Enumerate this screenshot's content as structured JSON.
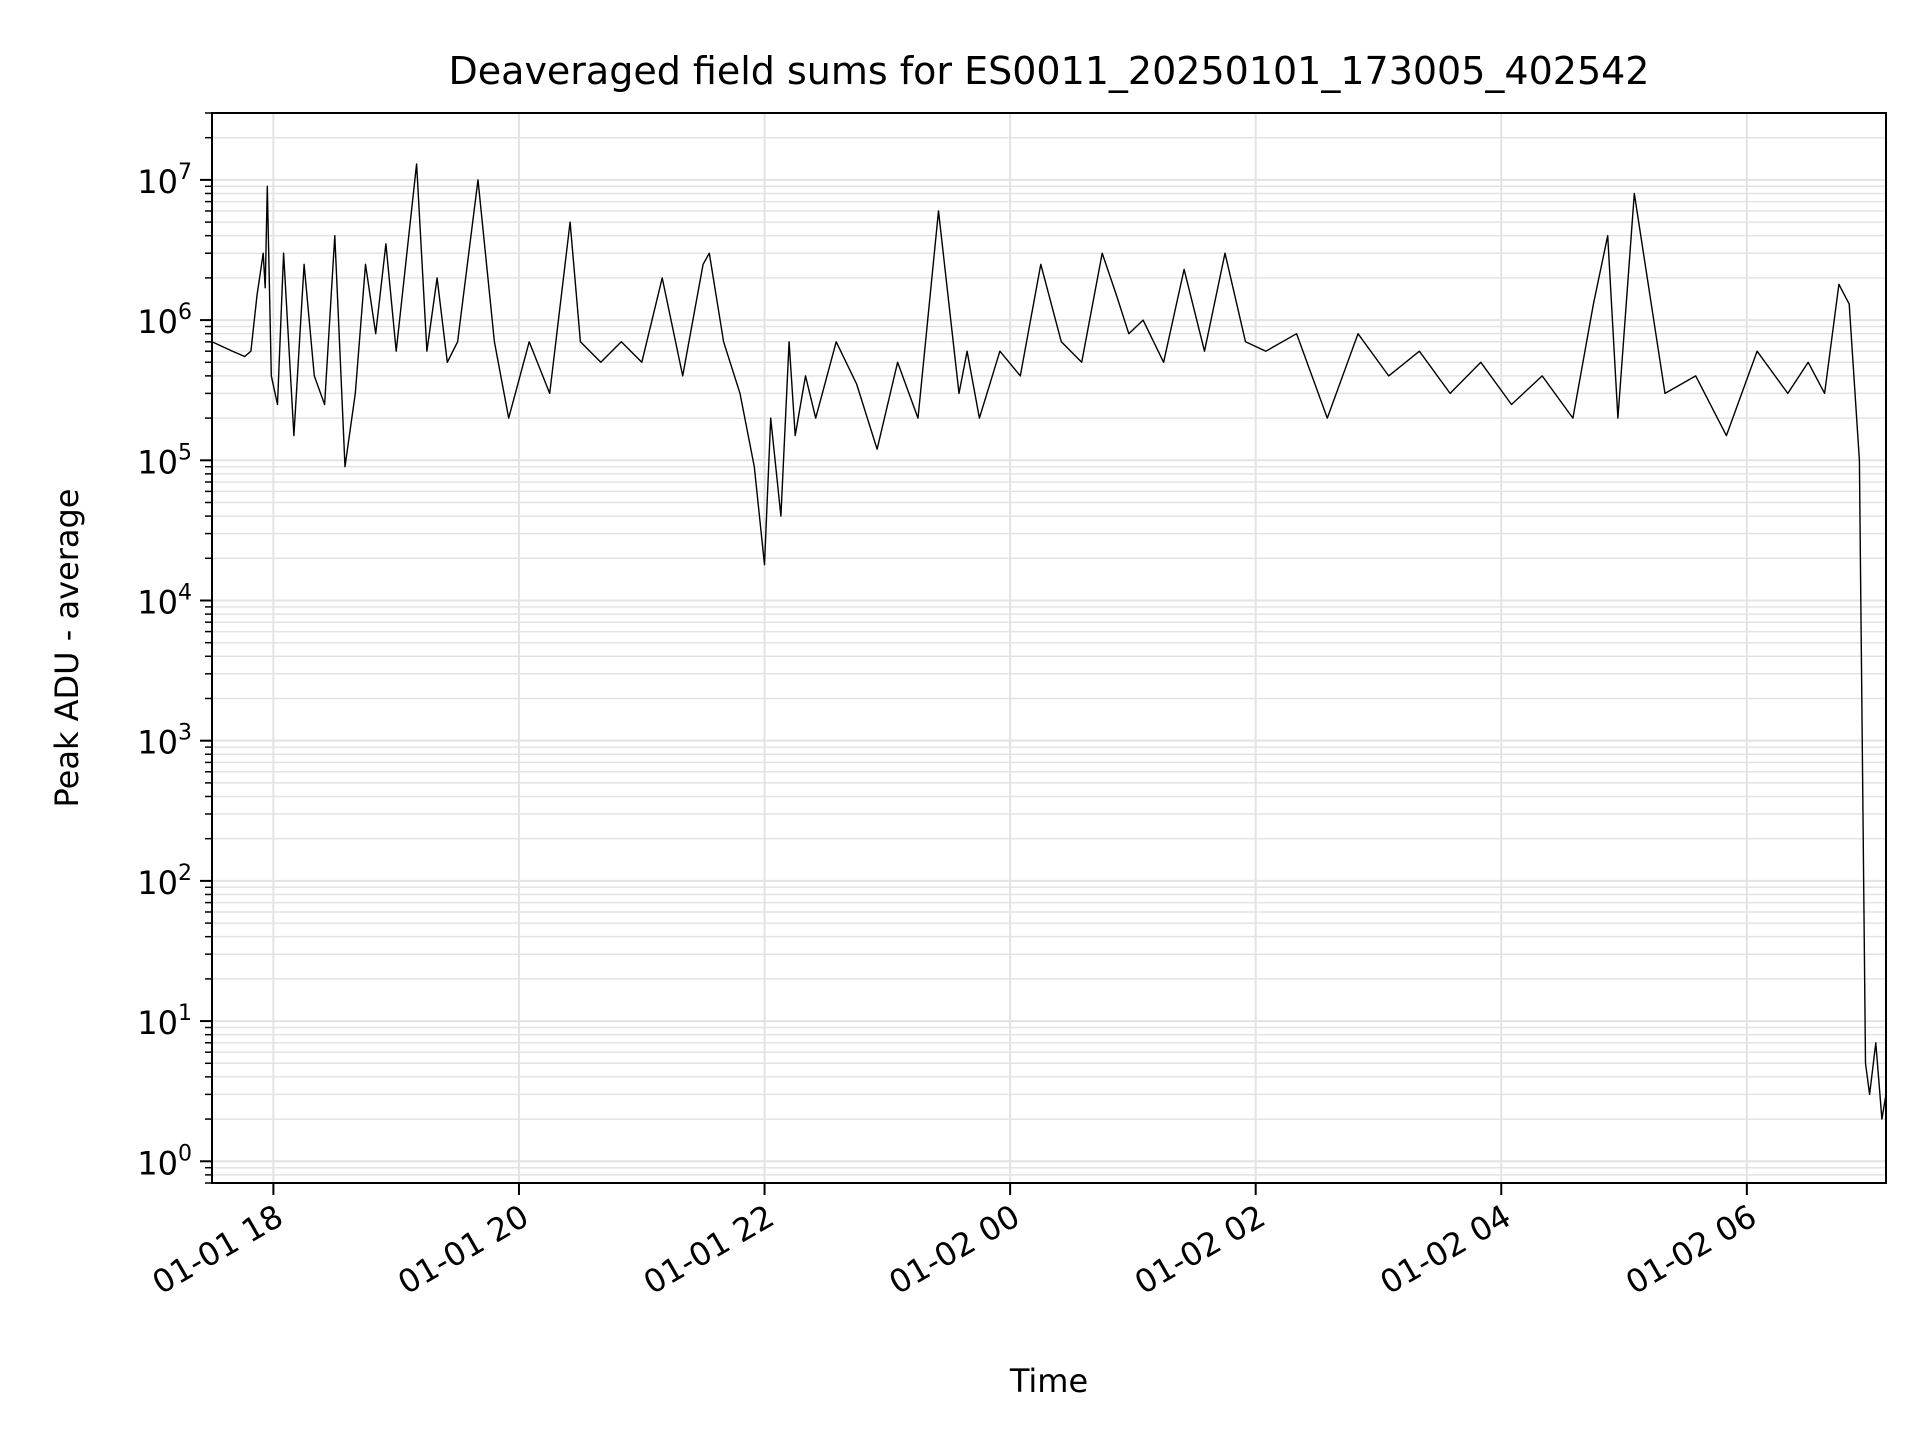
{
  "chart_data": {
    "type": "line",
    "title": "Deaveraged field sums for ES0011_20250101_173005_402542",
    "xlabel": "Time",
    "ylabel": "Peak ADU - average",
    "yscale": "log",
    "ylim": [
      0.7,
      30000000
    ],
    "xlim": [
      "2025-01-01 17:30",
      "2025-01-02 07:08"
    ],
    "grid": true,
    "line_color": "#000000",
    "grid_color": "#e3e3e3",
    "x_ticks": [
      {
        "label": "01-01 18",
        "value": "2025-01-01 18:00"
      },
      {
        "label": "01-01 20",
        "value": "2025-01-01 20:00"
      },
      {
        "label": "01-01 22",
        "value": "2025-01-01 22:00"
      },
      {
        "label": "01-02 00",
        "value": "2025-01-02 00:00"
      },
      {
        "label": "01-02 02",
        "value": "2025-01-02 02:00"
      },
      {
        "label": "01-02 04",
        "value": "2025-01-02 04:00"
      },
      {
        "label": "01-02 06",
        "value": "2025-01-02 06:00"
      }
    ],
    "y_ticks": [
      {
        "base": "10",
        "exp": "0",
        "value": 1
      },
      {
        "base": "10",
        "exp": "1",
        "value": 10
      },
      {
        "base": "10",
        "exp": "2",
        "value": 100
      },
      {
        "base": "10",
        "exp": "3",
        "value": 1000
      },
      {
        "base": "10",
        "exp": "4",
        "value": 10000
      },
      {
        "base": "10",
        "exp": "5",
        "value": 100000
      },
      {
        "base": "10",
        "exp": "6",
        "value": 1000000
      },
      {
        "base": "10",
        "exp": "7",
        "value": 10000000
      }
    ],
    "series": [
      {
        "x": [
          "2025-01-01 17:30",
          "2025-01-01 17:40",
          "2025-01-01 17:46",
          "2025-01-01 17:49",
          "2025-01-01 17:52",
          "2025-01-01 17:55",
          "2025-01-01 17:56",
          "2025-01-01 17:57",
          "2025-01-01 17:59",
          "2025-01-01 18:02",
          "2025-01-01 18:05",
          "2025-01-01 18:10",
          "2025-01-01 18:15",
          "2025-01-01 18:20",
          "2025-01-01 18:25",
          "2025-01-01 18:30",
          "2025-01-01 18:35",
          "2025-01-01 18:40",
          "2025-01-01 18:45",
          "2025-01-01 18:50",
          "2025-01-01 18:55",
          "2025-01-01 19:00",
          "2025-01-01 19:10",
          "2025-01-01 19:15",
          "2025-01-01 19:20",
          "2025-01-01 19:25",
          "2025-01-01 19:30",
          "2025-01-01 19:40",
          "2025-01-01 19:48",
          "2025-01-01 19:55",
          "2025-01-01 20:05",
          "2025-01-01 20:15",
          "2025-01-01 20:25",
          "2025-01-01 20:30",
          "2025-01-01 20:40",
          "2025-01-01 20:50",
          "2025-01-01 21:00",
          "2025-01-01 21:10",
          "2025-01-01 21:20",
          "2025-01-01 21:30",
          "2025-01-01 21:33",
          "2025-01-01 21:40",
          "2025-01-01 21:48",
          "2025-01-01 21:55",
          "2025-01-01 22:00",
          "2025-01-01 22:03",
          "2025-01-01 22:08",
          "2025-01-01 22:12",
          "2025-01-01 22:15",
          "2025-01-01 22:20",
          "2025-01-01 22:25",
          "2025-01-01 22:35",
          "2025-01-01 22:45",
          "2025-01-01 22:55",
          "2025-01-01 23:05",
          "2025-01-01 23:15",
          "2025-01-01 23:25",
          "2025-01-01 23:35",
          "2025-01-01 23:39",
          "2025-01-01 23:45",
          "2025-01-01 23:55",
          "2025-01-02 00:05",
          "2025-01-02 00:15",
          "2025-01-02 00:25",
          "2025-01-02 00:35",
          "2025-01-02 00:45",
          "2025-01-02 00:52",
          "2025-01-02 00:58",
          "2025-01-02 01:05",
          "2025-01-02 01:15",
          "2025-01-02 01:25",
          "2025-01-02 01:35",
          "2025-01-02 01:45",
          "2025-01-02 01:55",
          "2025-01-02 02:05",
          "2025-01-02 02:20",
          "2025-01-02 02:35",
          "2025-01-02 02:50",
          "2025-01-02 03:05",
          "2025-01-02 03:20",
          "2025-01-02 03:35",
          "2025-01-02 03:50",
          "2025-01-02 04:05",
          "2025-01-02 04:20",
          "2025-01-02 04:35",
          "2025-01-02 04:45",
          "2025-01-02 04:52",
          "2025-01-02 04:57",
          "2025-01-02 05:05",
          "2025-01-02 05:20",
          "2025-01-02 05:35",
          "2025-01-02 05:50",
          "2025-01-02 06:05",
          "2025-01-02 06:20",
          "2025-01-02 06:30",
          "2025-01-02 06:38",
          "2025-01-02 06:45",
          "2025-01-02 06:50",
          "2025-01-02 06:55",
          "2025-01-02 06:58",
          "2025-01-02 07:00",
          "2025-01-02 07:03",
          "2025-01-02 07:06",
          "2025-01-02 07:08"
        ],
        "y": [
          700000,
          600000,
          550000,
          600000,
          1500000,
          3000000,
          1700000,
          9000000,
          400000,
          250000,
          3000000,
          150000,
          2500000,
          400000,
          250000,
          4000000,
          90000,
          300000,
          2500000,
          800000,
          3500000,
          600000,
          13000000,
          600000,
          2000000,
          500000,
          700000,
          10000000,
          700000,
          200000,
          700000,
          300000,
          5000000,
          700000,
          500000,
          700000,
          500000,
          2000000,
          400000,
          2500000,
          3000000,
          700000,
          300000,
          90000,
          18000,
          200000,
          40000,
          700000,
          150000,
          400000,
          200000,
          700000,
          350000,
          120000,
          500000,
          200000,
          6000000,
          300000,
          600000,
          200000,
          600000,
          400000,
          2500000,
          700000,
          500000,
          3000000,
          1500000,
          800000,
          1000000,
          500000,
          2300000,
          600000,
          3000000,
          700000,
          600000,
          800000,
          200000,
          800000,
          400000,
          600000,
          300000,
          500000,
          250000,
          400000,
          200000,
          1300000,
          4000000,
          200000,
          8000000,
          300000,
          400000,
          150000,
          600000,
          300000,
          500000,
          300000,
          1800000,
          1300000,
          100000,
          5,
          3,
          7,
          2,
          3
        ]
      }
    ]
  }
}
